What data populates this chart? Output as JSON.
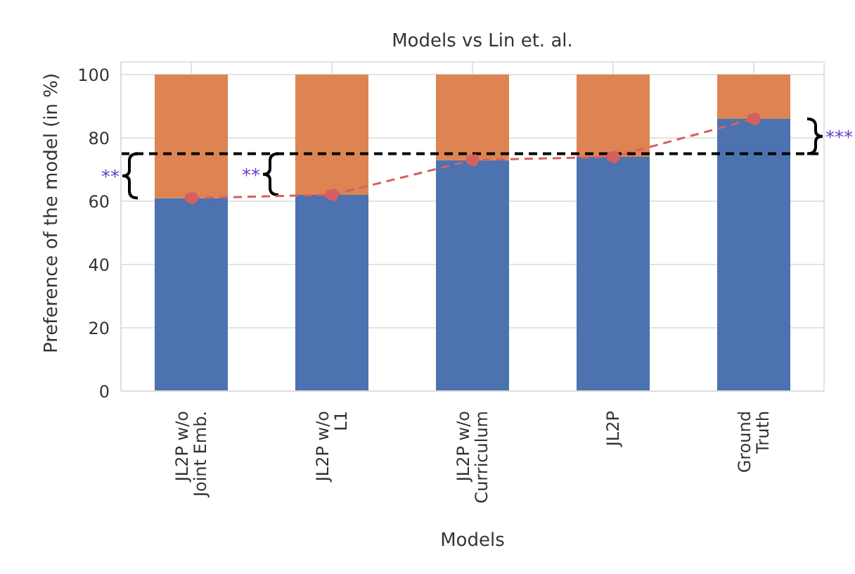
{
  "chart_data": {
    "type": "bar",
    "title": "Models vs Lin et. al.",
    "xlabel": "Models",
    "ylabel": "Preference of the model (in %)",
    "categories": [
      "JL2P w/o Joint Emb.",
      "JL2P w/o L1",
      "JL2P w/o Curriculum",
      "JL2P",
      "Ground Truth"
    ],
    "stacked": true,
    "series": [
      {
        "color": "#4c72b0",
        "values": [
          61,
          62,
          73,
          74,
          86
        ]
      },
      {
        "color": "#dd8452",
        "values": [
          39,
          38,
          27,
          26,
          14
        ]
      },
      {
        "type": "line",
        "color": "#d65f5f",
        "values": [
          61,
          62,
          73,
          74,
          86
        ],
        "marker": "circle",
        "line_style": "dashed"
      }
    ],
    "ref_lines": [
      {
        "axis": "y",
        "value": 75,
        "color": "#000000",
        "line_style": "dashed"
      }
    ],
    "annotations": [
      "**",
      "**",
      "***"
    ],
    "ylim": [
      0,
      104
    ],
    "yticks": [
      0,
      20,
      40,
      60,
      80,
      100
    ],
    "grid": true,
    "legend": false
  }
}
